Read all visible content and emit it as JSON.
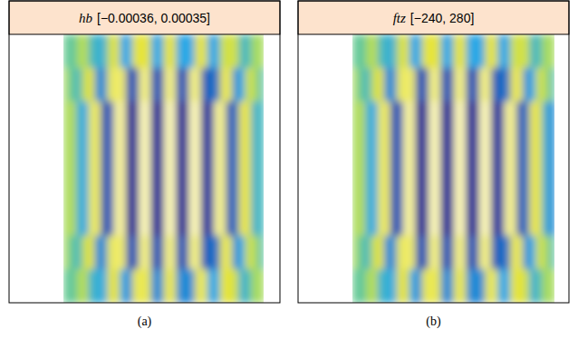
{
  "chart_data": [
    {
      "type": "heatmap",
      "title": "hb",
      "tick_labels": false,
      "color_range": {
        "value": [
          -0.00036,
          0.00035
        ],
        "label": "[−0.00036, 0.00035]"
      },
      "caption": "(a)",
      "cells": [
        [
          -3.6e-05,
          -7.2e-05,
          7e-05,
          0.000105,
          -0.000108,
          -0.000144,
          -0.000144,
          0.00014,
          0.000175,
          -0.00018,
          -0.00018,
          0.000175,
          0.000175,
          0.000175,
          -0.00018,
          -0.00018,
          0.000175,
          0.000175,
          -0.00018,
          -0.00018,
          -0.00018,
          0.000175,
          0.000175,
          -0.00018,
          -0.00018,
          0.00014,
          0.00014,
          0.00014,
          -0.000108,
          -0.000108,
          7e-05,
          7e-05
        ],
        [
          7e-05,
          -7.2e-05,
          -0.000108,
          0.00014,
          0.000175,
          -0.000216,
          -0.000216,
          0.00021,
          0.000245,
          0.000245,
          -0.000288,
          -0.000288,
          0.00028,
          0.00028,
          -0.000288,
          -0.000288,
          0.00028,
          0.00028,
          -0.000288,
          -0.000288,
          0.00028,
          0.00028,
          -0.000288,
          -0.000252,
          -0.000252,
          0.00021,
          0.00021,
          -0.000216,
          -0.00018,
          0.00014,
          0.000105,
          -7.2e-05
        ],
        [
          7e-05,
          0.000105,
          -0.000144,
          -0.00018,
          0.00021,
          0.000245,
          -0.000288,
          -0.000288,
          0.000315,
          0.000315,
          -0.00036,
          -0.00036,
          0.00035,
          0.00035,
          -0.00036,
          -0.00036,
          0.00035,
          0.00035,
          -0.00036,
          -0.00036,
          0.00035,
          0.00035,
          -0.00036,
          -0.000324,
          0.000315,
          0.00028,
          -0.000288,
          -0.000252,
          0.00021,
          0.000175,
          -0.000144,
          -0.000108
        ],
        [
          7e-05,
          0.000105,
          -0.000144,
          -0.00018,
          0.00021,
          0.000245,
          -0.000288,
          -0.000288,
          0.000315,
          0.000315,
          -0.00036,
          -0.00036,
          0.00035,
          0.00035,
          -0.00036,
          -0.00036,
          0.00035,
          0.00035,
          -0.00036,
          -0.00036,
          0.00035,
          0.00035,
          -0.00036,
          -0.000324,
          0.000315,
          0.00028,
          -0.000288,
          -0.000252,
          0.00021,
          0.000175,
          -0.000144,
          -0.000108
        ],
        [
          7e-05,
          0.000105,
          -0.000144,
          -0.00018,
          0.00021,
          0.000245,
          -0.000288,
          -0.000288,
          0.000315,
          0.000315,
          -0.00036,
          -0.00036,
          0.00035,
          0.00035,
          -0.00036,
          -0.00036,
          0.00035,
          0.00035,
          -0.00036,
          -0.00036,
          0.00035,
          0.00035,
          -0.00036,
          -0.000324,
          0.000315,
          0.00028,
          -0.000288,
          -0.000252,
          0.00021,
          0.000175,
          -0.000144,
          -0.000108
        ],
        [
          7e-05,
          0.000105,
          -0.000144,
          -0.00018,
          0.00021,
          0.000245,
          -0.000288,
          -0.000288,
          0.000315,
          0.000315,
          -0.00036,
          -0.00036,
          0.00035,
          0.00035,
          -0.00036,
          -0.00036,
          0.00035,
          0.00035,
          -0.00036,
          -0.00036,
          0.00035,
          0.00035,
          -0.00036,
          -0.000324,
          0.000315,
          0.00028,
          -0.000288,
          -0.000252,
          0.00021,
          0.000175,
          -0.000144,
          -0.000108
        ],
        [
          7e-05,
          -7.2e-05,
          -0.000108,
          0.00014,
          0.000175,
          -0.000216,
          -0.000216,
          0.00021,
          0.000245,
          0.000245,
          -0.000288,
          -0.000288,
          0.00028,
          0.00028,
          -0.000288,
          -0.000288,
          0.00028,
          0.00028,
          -0.000288,
          -0.000288,
          0.00028,
          0.00028,
          -0.000288,
          -0.000252,
          -0.000252,
          0.00021,
          0.00021,
          -0.000216,
          -0.00018,
          0.00014,
          0.000105,
          -7.2e-05
        ],
        [
          -3.6e-05,
          -7.2e-05,
          7e-05,
          0.000105,
          -0.000144,
          -0.000144,
          -0.00018,
          0.000175,
          0.000175,
          -0.00018,
          -0.000216,
          0.00021,
          0.00021,
          0.00021,
          -0.000216,
          -0.000216,
          0.00021,
          0.00021,
          -0.000216,
          -0.000216,
          -0.000216,
          0.00021,
          0.00021,
          -0.00018,
          -0.00018,
          0.000175,
          0.000175,
          0.00014,
          -0.000144,
          -0.000108,
          7e-05,
          7e-05
        ]
      ]
    },
    {
      "type": "heatmap",
      "title": "ftz",
      "tick_labels": false,
      "color_range": {
        "value": [
          -240,
          280
        ],
        "label": "[−240, 280]"
      },
      "caption": "(b)",
      "cells": [
        [
          -24,
          -48,
          56,
          84,
          -72,
          -96,
          -96,
          112,
          140,
          -120,
          -120,
          140,
          140,
          140,
          -120,
          -120,
          140,
          140,
          -120,
          -120,
          -120,
          140,
          140,
          -120,
          -120,
          112,
          112,
          112,
          -72,
          -72,
          56,
          56
        ],
        [
          56,
          -48,
          -72,
          112,
          140,
          -144,
          -144,
          168,
          196,
          196,
          -192,
          -192,
          224,
          224,
          -192,
          -192,
          224,
          224,
          -192,
          -192,
          224,
          224,
          -192,
          -168,
          -168,
          168,
          168,
          -144,
          -120,
          112,
          84,
          -48
        ],
        [
          56,
          84,
          -96,
          -120,
          168,
          196,
          -192,
          -192,
          252,
          252,
          -240,
          -240,
          280,
          280,
          -240,
          -240,
          280,
          280,
          -240,
          -240,
          280,
          280,
          -240,
          -216,
          252,
          224,
          -192,
          -168,
          168,
          140,
          -96,
          -144
        ],
        [
          56,
          84,
          -96,
          -120,
          168,
          196,
          -192,
          -192,
          252,
          252,
          -240,
          -240,
          280,
          280,
          -240,
          -240,
          280,
          280,
          -240,
          -240,
          280,
          280,
          -240,
          -216,
          252,
          224,
          -192,
          -168,
          168,
          140,
          -96,
          -144
        ],
        [
          56,
          84,
          -96,
          -120,
          168,
          196,
          -192,
          -192,
          252,
          252,
          -240,
          -240,
          280,
          280,
          -240,
          -240,
          280,
          280,
          -240,
          -240,
          280,
          280,
          -240,
          -216,
          252,
          224,
          -192,
          -168,
          168,
          140,
          -96,
          -144
        ],
        [
          56,
          84,
          -96,
          -120,
          168,
          196,
          -192,
          -192,
          252,
          252,
          -240,
          -240,
          280,
          280,
          -240,
          -240,
          280,
          280,
          -240,
          -240,
          280,
          280,
          -240,
          -216,
          252,
          224,
          -192,
          -168,
          168,
          140,
          -96,
          -144
        ],
        [
          56,
          -48,
          -72,
          112,
          140,
          -144,
          -144,
          168,
          196,
          196,
          -192,
          -192,
          224,
          224,
          -192,
          -192,
          224,
          224,
          -192,
          -192,
          224,
          224,
          -192,
          -168,
          -168,
          168,
          168,
          -144,
          -120,
          112,
          84,
          -48
        ],
        [
          -24,
          -48,
          56,
          84,
          -96,
          -96,
          -120,
          140,
          140,
          -120,
          -144,
          168,
          168,
          168,
          -144,
          -144,
          168,
          168,
          -144,
          -144,
          -144,
          168,
          168,
          -120,
          -120,
          140,
          140,
          112,
          -96,
          -72,
          56,
          56
        ]
      ]
    }
  ]
}
